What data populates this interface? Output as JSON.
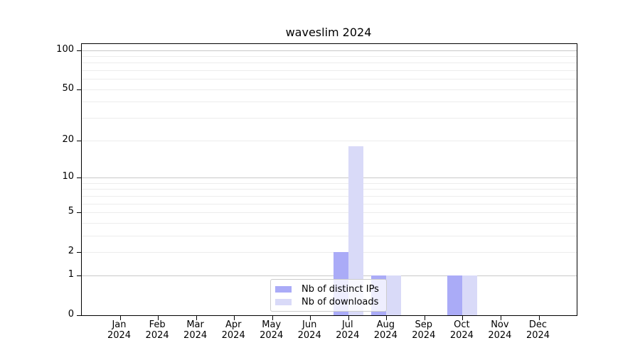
{
  "title": "waveslim 2024",
  "chart_data": {
    "type": "bar",
    "title": "waveslim 2024",
    "categories": [
      "Jan",
      "Feb",
      "Mar",
      "Apr",
      "May",
      "Jun",
      "Jul",
      "Aug",
      "Sep",
      "Oct",
      "Nov",
      "Dec"
    ],
    "tick_year": "2024",
    "series": [
      {
        "name": "Nb of distinct IPs",
        "color": "#aaabf7",
        "values": [
          0,
          0,
          0,
          0,
          0,
          0,
          2,
          1,
          0,
          1,
          0,
          0
        ]
      },
      {
        "name": "Nb of downloads",
        "color": "#d9daf8",
        "values": [
          0,
          0,
          0,
          0,
          0,
          0,
          18,
          1,
          0,
          1,
          0,
          0
        ]
      }
    ],
    "y_scale": "log1p",
    "ylim": [
      0,
      111
    ],
    "y_ticks_labeled": [
      0,
      1,
      2,
      5,
      10,
      20,
      50,
      100
    ],
    "y_gridlines_major": [
      1,
      10,
      100
    ],
    "y_gridlines_minor": [
      2,
      3,
      4,
      5,
      6,
      7,
      8,
      9,
      20,
      30,
      40,
      50,
      60,
      70,
      80,
      90
    ],
    "grid": true,
    "legend_position": "lower center inside",
    "colors": {
      "spine": "#000000",
      "grid_major": "#c8c8c8",
      "grid_minor": "#ececec",
      "legend_border": "#cccccc",
      "text": "#000000"
    }
  }
}
